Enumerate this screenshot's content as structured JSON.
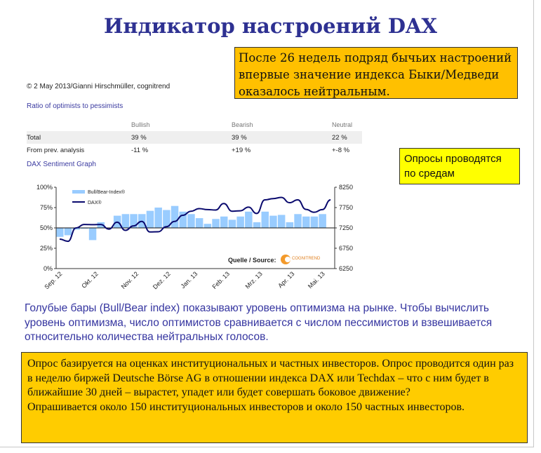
{
  "title": "Индикатор настроений DAX",
  "callout_top": "После 26 недель подряд бычьих настроений впервые значение индекса Быки/Медведи оказалось нейтральным.",
  "callout_right": "Опросы проводятся по средам",
  "description": "Голубые бары (Bull/Bear index) показывают уровень оптимизма на рынке. Чтобы вычислить уровень оптимизма, число оптимистов сравнивается с числом пессимистов и взвешивается относительно количества нейтральных голосов.",
  "callout_bottom": [
    "Опрос базируется на оценках институциональных и частных инвесторов. Опрос проводится один раз в неделю биржей Deutsche Börse AG в отношении индекса DAX или Techdax – что с ним будет в ближайшие 30 дней – вырастет, упадет или будет совершать боковое движение?",
    "Опрашивается около 150 институциональных инвесторов и около 150 частных инвесторов."
  ],
  "source_image": {
    "copyright": "© 2 May 2013/Gianni Hirschmüller, cognitrend",
    "ratio_heading": "Ratio of optimists to pessimists",
    "table": {
      "columns": [
        "",
        "Bullish",
        "Bearish",
        "Neutral"
      ],
      "rows": [
        [
          "Total",
          "39 %",
          "39 %",
          "22 %"
        ],
        [
          "From prev. analysis",
          "-11 %",
          "+19 %",
          "+-8 %"
        ]
      ]
    },
    "graph_heading": "DAX Sentiment Graph"
  },
  "colors": {
    "title": "#2e3192",
    "bars": "#99ccff",
    "line": "#0a0a6e",
    "callout_orange": "#ffc000",
    "callout_yellow": "#ffff00"
  },
  "chart_data": {
    "type": "bar+line",
    "categories_ticks": [
      "Sep. 12",
      "Okt. 12",
      "Nov. 12",
      "Dez. 12",
      "Jan. 13",
      "Feb. 13",
      "Mrz. 13",
      "Apr. 13",
      "Mai. 13"
    ],
    "tick_positions_week": [
      0,
      4.4,
      9.3,
      13.2,
      16.5,
      20.4,
      24.4,
      28.3,
      32
    ],
    "series": [
      {
        "name": "Bull/Bear-Index®",
        "axis": "left",
        "type": "bar",
        "baseline": 50,
        "values": [
          39,
          41,
          48,
          49,
          35,
          57,
          50,
          65,
          67,
          67,
          67,
          71,
          75,
          72,
          77,
          70,
          67,
          62,
          55,
          61,
          64,
          60,
          64,
          70,
          57,
          70,
          65,
          66,
          57,
          67,
          64,
          64,
          67
        ]
      },
      {
        "name": "DAX®",
        "axis": "right",
        "type": "line",
        "values": [
          6975,
          6920,
          7250,
          7335,
          7330,
          7335,
          7220,
          7390,
          7190,
          7300,
          7410,
          7150,
          7155,
          7280,
          7410,
          7560,
          7660,
          7725,
          7700,
          7690,
          7850,
          7660,
          7670,
          7760,
          7605,
          7940,
          7970,
          8000,
          7870,
          7940,
          7705,
          7635,
          7700,
          7940
        ]
      }
    ],
    "y_left": {
      "ticks": [
        "0%",
        "25%",
        "50%",
        "75%",
        "100%"
      ],
      "range": [
        0,
        100
      ]
    },
    "y_right": {
      "ticks": [
        "6250",
        "6750",
        "7250",
        "7750",
        "8250"
      ],
      "range": [
        6250,
        8250
      ]
    },
    "grid": "50% line only",
    "legend": "top-left",
    "source_label": "Quelle / Source:",
    "logo_text": "COGNITREND"
  }
}
